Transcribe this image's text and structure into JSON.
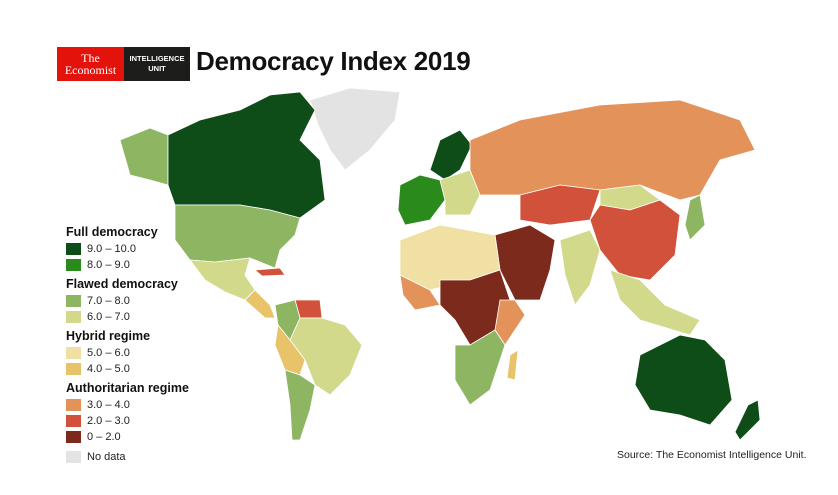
{
  "header": {
    "logo_left": [
      "The",
      "Economist"
    ],
    "logo_right": [
      "INTELLIGENCE",
      "UNIT"
    ],
    "title": "Democracy Index 2019"
  },
  "legend": {
    "groups": [
      {
        "label": "Full democracy",
        "items": [
          {
            "range": "9.0 – 10.0",
            "color": "#0e4d17"
          },
          {
            "range": "8.0 – 9.0",
            "color": "#2b8a1c"
          }
        ]
      },
      {
        "label": "Flawed democracy",
        "items": [
          {
            "range": "7.0 – 8.0",
            "color": "#8db562"
          },
          {
            "range": "6.0 – 7.0",
            "color": "#d2d98b"
          }
        ]
      },
      {
        "label": "Hybrid regime",
        "items": [
          {
            "range": "5.0 – 6.0",
            "color": "#f1e0a4"
          },
          {
            "range": "4.0 – 5.0",
            "color": "#e8c36a"
          }
        ]
      },
      {
        "label": "Authoritarian regime",
        "items": [
          {
            "range": "3.0 – 4.0",
            "color": "#e3925a"
          },
          {
            "range": "2.0 – 3.0",
            "color": "#d2513b"
          },
          {
            "range": "0 – 2.0",
            "color": "#7b2a1c"
          }
        ]
      }
    ],
    "no_data": {
      "label": "No data",
      "color": "#e3e3e3"
    }
  },
  "source": "Source: The Economist Intelligence Unit."
}
